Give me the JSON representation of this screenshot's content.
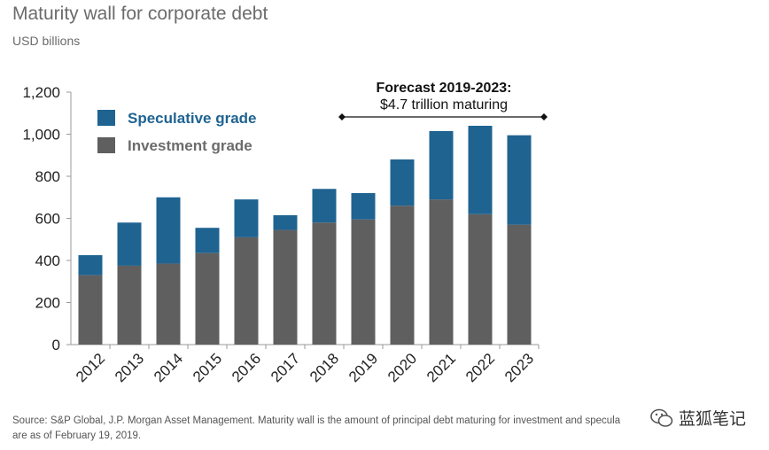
{
  "header": {
    "title": "Maturity wall for corporate debt",
    "subtitle": "USD billions"
  },
  "annotation": {
    "line1": "Forecast 2019-2023:",
    "line2": "$4.7 trillion maturing"
  },
  "footer": {
    "source": "Source: S&P Global, J.P. Morgan Asset Management. Maturity wall is the amount of principal debt maturing for investment and specula",
    "source_line2": "are as of February 19, 2019."
  },
  "watermark": {
    "text": "蓝狐笔记",
    "icon": "wechat-icon"
  },
  "chart_data": {
    "type": "bar",
    "stacked": true,
    "categories": [
      "2012",
      "2013",
      "2014",
      "2015",
      "2016",
      "2017",
      "2018",
      "2019",
      "2020",
      "2021",
      "2022",
      "2023"
    ],
    "series": [
      {
        "name": "Investment grade",
        "color": "#5f5f5f",
        "values": [
          330,
          375,
          385,
          435,
          510,
          545,
          580,
          595,
          660,
          690,
          620,
          570
        ]
      },
      {
        "name": "Speculative grade",
        "color": "#1f6391",
        "values": [
          95,
          205,
          315,
          120,
          180,
          70,
          160,
          125,
          220,
          325,
          420,
          425
        ]
      }
    ],
    "ylim": [
      0,
      1200
    ],
    "yticks": [
      0,
      200,
      400,
      600,
      800,
      1000,
      1200
    ],
    "ytick_labels": [
      "0",
      "200",
      "400",
      "600",
      "800",
      "1,000",
      "1,200"
    ],
    "grid": false,
    "legend_placement": "top-left",
    "forecast_range": [
      "2019",
      "2023"
    ]
  }
}
